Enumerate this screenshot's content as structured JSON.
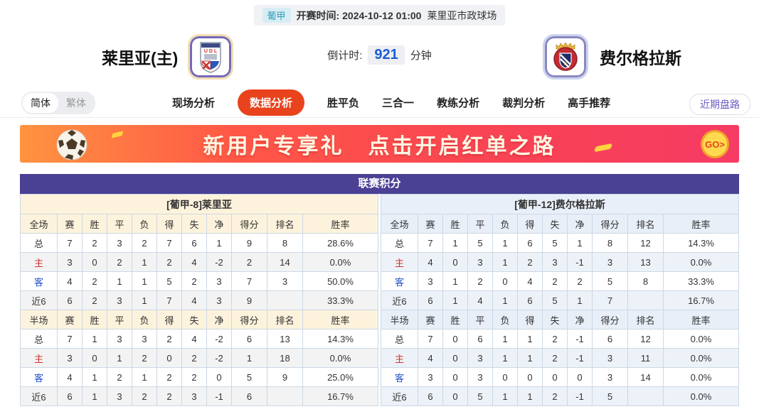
{
  "match_header": {
    "league_badge": "葡甲",
    "kickoff_label": "开赛时间:",
    "kickoff_time": "2024-10-12 01:00",
    "venue": "莱里亚市政球场",
    "home_team_name": "莱里亚(主)",
    "away_team_name": "费尔格拉斯",
    "countdown_label": "倒计时:",
    "countdown_value": "921",
    "countdown_unit": "分钟"
  },
  "nav": {
    "lang_simplified": "简体",
    "lang_traditional": "繁体",
    "tabs": [
      {
        "label": "现场分析",
        "active": false
      },
      {
        "label": "数据分析",
        "active": true
      },
      {
        "label": "胜平负",
        "active": false
      },
      {
        "label": "三合一",
        "active": false
      },
      {
        "label": "教练分析",
        "active": false
      },
      {
        "label": "裁判分析",
        "active": false
      },
      {
        "label": "高手推荐",
        "active": false
      }
    ],
    "recent_trend_button": "近期盘路"
  },
  "banner": {
    "text_left": "新用户专享礼",
    "text_right": "点击开启红单之路",
    "go_label": "GO>"
  },
  "league_table": {
    "title": "联赛积分",
    "halves": [
      {
        "side": "home",
        "team_header": "[葡甲-8]莱里亚",
        "sections": [
          {
            "columns": [
              "全场",
              "赛",
              "胜",
              "平",
              "负",
              "得",
              "失",
              "净",
              "得分",
              "排名",
              "胜率"
            ],
            "rows": [
              {
                "label": "总",
                "values": [
                  "7",
                  "2",
                  "3",
                  "2",
                  "7",
                  "6",
                  "1",
                  "9",
                  "8",
                  "28.6%"
                ]
              },
              {
                "label": "主",
                "values": [
                  "3",
                  "0",
                  "2",
                  "1",
                  "2",
                  "4",
                  "-2",
                  "2",
                  "14",
                  "0.0%"
                ]
              },
              {
                "label": "客",
                "values": [
                  "4",
                  "2",
                  "1",
                  "1",
                  "5",
                  "2",
                  "3",
                  "7",
                  "3",
                  "50.0%"
                ]
              },
              {
                "label": "近6",
                "values": [
                  "6",
                  "2",
                  "3",
                  "1",
                  "7",
                  "4",
                  "3",
                  "9",
                  "",
                  "33.3%"
                ]
              }
            ]
          },
          {
            "columns": [
              "半场",
              "赛",
              "胜",
              "平",
              "负",
              "得",
              "失",
              "净",
              "得分",
              "排名",
              "胜率"
            ],
            "rows": [
              {
                "label": "总",
                "values": [
                  "7",
                  "1",
                  "3",
                  "3",
                  "2",
                  "4",
                  "-2",
                  "6",
                  "13",
                  "14.3%"
                ]
              },
              {
                "label": "主",
                "values": [
                  "3",
                  "0",
                  "1",
                  "2",
                  "0",
                  "2",
                  "-2",
                  "1",
                  "18",
                  "0.0%"
                ]
              },
              {
                "label": "客",
                "values": [
                  "4",
                  "1",
                  "2",
                  "1",
                  "2",
                  "2",
                  "0",
                  "5",
                  "9",
                  "25.0%"
                ]
              },
              {
                "label": "近6",
                "values": [
                  "6",
                  "1",
                  "3",
                  "2",
                  "2",
                  "3",
                  "-1",
                  "6",
                  "",
                  "16.7%"
                ]
              }
            ]
          }
        ]
      },
      {
        "side": "away",
        "team_header": "[葡甲-12]费尔格拉斯",
        "sections": [
          {
            "columns": [
              "全场",
              "赛",
              "胜",
              "平",
              "负",
              "得",
              "失",
              "净",
              "得分",
              "排名",
              "胜率"
            ],
            "rows": [
              {
                "label": "总",
                "values": [
                  "7",
                  "1",
                  "5",
                  "1",
                  "6",
                  "5",
                  "1",
                  "8",
                  "12",
                  "14.3%"
                ]
              },
              {
                "label": "主",
                "values": [
                  "4",
                  "0",
                  "3",
                  "1",
                  "2",
                  "3",
                  "-1",
                  "3",
                  "13",
                  "0.0%"
                ]
              },
              {
                "label": "客",
                "values": [
                  "3",
                  "1",
                  "2",
                  "0",
                  "4",
                  "2",
                  "2",
                  "5",
                  "8",
                  "33.3%"
                ]
              },
              {
                "label": "近6",
                "values": [
                  "6",
                  "1",
                  "4",
                  "1",
                  "6",
                  "5",
                  "1",
                  "7",
                  "",
                  "16.7%"
                ]
              }
            ]
          },
          {
            "columns": [
              "半场",
              "赛",
              "胜",
              "平",
              "负",
              "得",
              "失",
              "净",
              "得分",
              "排名",
              "胜率"
            ],
            "rows": [
              {
                "label": "总",
                "values": [
                  "7",
                  "0",
                  "6",
                  "1",
                  "1",
                  "2",
                  "-1",
                  "6",
                  "12",
                  "0.0%"
                ]
              },
              {
                "label": "主",
                "values": [
                  "4",
                  "0",
                  "3",
                  "1",
                  "1",
                  "2",
                  "-1",
                  "3",
                  "11",
                  "0.0%"
                ]
              },
              {
                "label": "客",
                "values": [
                  "3",
                  "0",
                  "3",
                  "0",
                  "0",
                  "0",
                  "0",
                  "3",
                  "14",
                  "0.0%"
                ]
              },
              {
                "label": "近6",
                "values": [
                  "6",
                  "0",
                  "5",
                  "1",
                  "1",
                  "2",
                  "-1",
                  "5",
                  "",
                  "0.0%"
                ]
              }
            ]
          }
        ]
      }
    ]
  },
  "colors": {
    "accent_orange": "#e8431d",
    "title_purple": "#4a4195",
    "home_header_bg": "#fdf3dc",
    "away_header_bg": "#e9eff8",
    "countdown_blue": "#1b5ed6",
    "badge_teal": "#2f9cb8",
    "home_label_red": "#d0342c",
    "away_label_blue": "#2553cc"
  }
}
